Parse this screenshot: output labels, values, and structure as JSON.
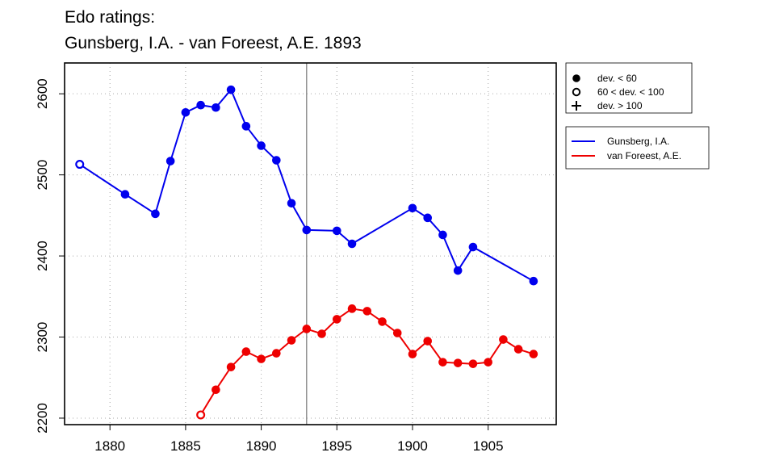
{
  "chart_data": {
    "type": "line",
    "title_line1": "Edo ratings:",
    "title_line2": "Gunsberg, I.A. - van Foreest, A.E. 1893",
    "xlabel": "",
    "ylabel": "",
    "xlim": [
      1877,
      1909.5
    ],
    "ylim": [
      2192,
      2638
    ],
    "x_ticks": [
      1880,
      1885,
      1890,
      1895,
      1900,
      1905
    ],
    "y_ticks": [
      2200,
      2300,
      2400,
      2500,
      2600
    ],
    "grid": true,
    "reference_line_x": 1893,
    "marker_legend": [
      {
        "symbol": "filled-circle",
        "label": "dev. < 60"
      },
      {
        "symbol": "open-circle",
        "label": "60 < dev. < 100"
      },
      {
        "symbol": "plus",
        "label": "dev. > 100"
      }
    ],
    "series": [
      {
        "name": "Gunsberg, I.A.",
        "color": "#0000ee",
        "points": [
          {
            "x": 1878,
            "y": 2513,
            "marker": "open"
          },
          {
            "x": 1881,
            "y": 2476,
            "marker": "filled"
          },
          {
            "x": 1883,
            "y": 2452,
            "marker": "filled"
          },
          {
            "x": 1884,
            "y": 2517,
            "marker": "filled"
          },
          {
            "x": 1885,
            "y": 2577,
            "marker": "filled"
          },
          {
            "x": 1886,
            "y": 2586,
            "marker": "filled"
          },
          {
            "x": 1887,
            "y": 2583,
            "marker": "filled"
          },
          {
            "x": 1888,
            "y": 2605,
            "marker": "filled"
          },
          {
            "x": 1889,
            "y": 2560,
            "marker": "filled"
          },
          {
            "x": 1890,
            "y": 2536,
            "marker": "filled"
          },
          {
            "x": 1891,
            "y": 2518,
            "marker": "filled"
          },
          {
            "x": 1892,
            "y": 2465,
            "marker": "filled"
          },
          {
            "x": 1893,
            "y": 2432,
            "marker": "filled"
          },
          {
            "x": 1895,
            "y": 2431,
            "marker": "filled"
          },
          {
            "x": 1896,
            "y": 2415,
            "marker": "filled"
          },
          {
            "x": 1900,
            "y": 2459,
            "marker": "filled"
          },
          {
            "x": 1901,
            "y": 2447,
            "marker": "filled"
          },
          {
            "x": 1902,
            "y": 2426,
            "marker": "filled"
          },
          {
            "x": 1903,
            "y": 2382,
            "marker": "filled"
          },
          {
            "x": 1904,
            "y": 2411,
            "marker": "filled"
          },
          {
            "x": 1908,
            "y": 2369,
            "marker": "filled"
          }
        ]
      },
      {
        "name": "van Foreest, A.E.",
        "color": "#ee0000",
        "points": [
          {
            "x": 1886,
            "y": 2204,
            "marker": "open"
          },
          {
            "x": 1887,
            "y": 2235,
            "marker": "filled"
          },
          {
            "x": 1888,
            "y": 2263,
            "marker": "filled"
          },
          {
            "x": 1889,
            "y": 2282,
            "marker": "filled"
          },
          {
            "x": 1890,
            "y": 2273,
            "marker": "filled"
          },
          {
            "x": 1891,
            "y": 2280,
            "marker": "filled"
          },
          {
            "x": 1892,
            "y": 2296,
            "marker": "filled"
          },
          {
            "x": 1893,
            "y": 2310,
            "marker": "filled"
          },
          {
            "x": 1894,
            "y": 2304,
            "marker": "filled"
          },
          {
            "x": 1895,
            "y": 2322,
            "marker": "filled"
          },
          {
            "x": 1896,
            "y": 2335,
            "marker": "filled"
          },
          {
            "x": 1897,
            "y": 2332,
            "marker": "filled"
          },
          {
            "x": 1898,
            "y": 2319,
            "marker": "filled"
          },
          {
            "x": 1899,
            "y": 2305,
            "marker": "filled"
          },
          {
            "x": 1900,
            "y": 2279,
            "marker": "filled"
          },
          {
            "x": 1901,
            "y": 2295,
            "marker": "filled"
          },
          {
            "x": 1902,
            "y": 2269,
            "marker": "filled"
          },
          {
            "x": 1903,
            "y": 2268,
            "marker": "filled"
          },
          {
            "x": 1904,
            "y": 2267,
            "marker": "filled"
          },
          {
            "x": 1905,
            "y": 2269,
            "marker": "filled"
          },
          {
            "x": 1906,
            "y": 2297,
            "marker": "filled"
          },
          {
            "x": 1907,
            "y": 2285,
            "marker": "filled"
          },
          {
            "x": 1908,
            "y": 2279,
            "marker": "filled"
          }
        ]
      }
    ]
  }
}
